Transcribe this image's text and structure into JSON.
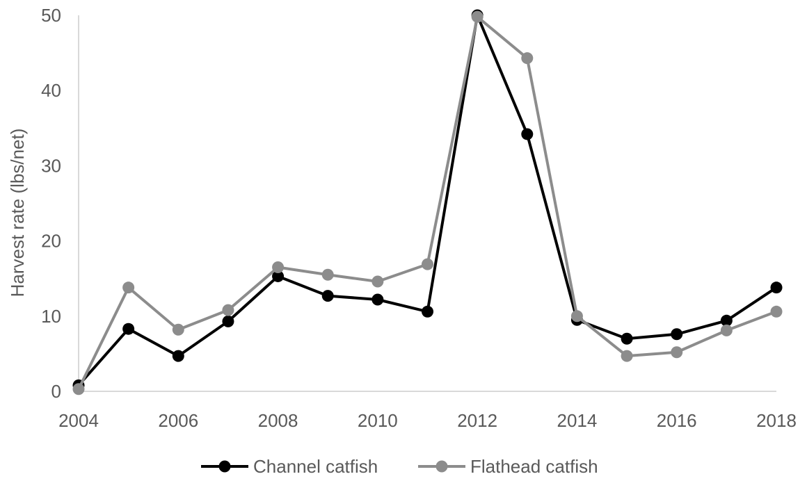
{
  "chart_data": {
    "type": "line",
    "title": "",
    "xlabel": "",
    "ylabel": "Harvest rate (lbs/net)",
    "xlim": [
      2004,
      2018
    ],
    "ylim": [
      0,
      50
    ],
    "x_ticks": [
      "2004",
      "2006",
      "2008",
      "2010",
      "2012",
      "2014",
      "2016",
      "2018"
    ],
    "y_ticks": [
      "0",
      "10",
      "20",
      "30",
      "40",
      "50"
    ],
    "grid": false,
    "legend_position": "bottom",
    "x": [
      2004,
      2005,
      2006,
      2007,
      2008,
      2009,
      2010,
      2011,
      2012,
      2013,
      2014,
      2015,
      2016,
      2017,
      2018
    ],
    "series": [
      {
        "name": "Channel catfish",
        "color": "#000000",
        "values": [
          0.8,
          8.3,
          4.7,
          9.3,
          15.3,
          12.7,
          12.2,
          10.6,
          50.0,
          34.2,
          9.5,
          7.0,
          7.6,
          9.4,
          13.8
        ]
      },
      {
        "name": "Flathead catfish",
        "color": "#8c8c8c",
        "values": [
          0.3,
          13.8,
          8.2,
          10.8,
          16.5,
          15.5,
          14.6,
          16.9,
          49.8,
          44.3,
          10.0,
          4.7,
          5.2,
          8.1,
          10.6
        ]
      }
    ]
  }
}
